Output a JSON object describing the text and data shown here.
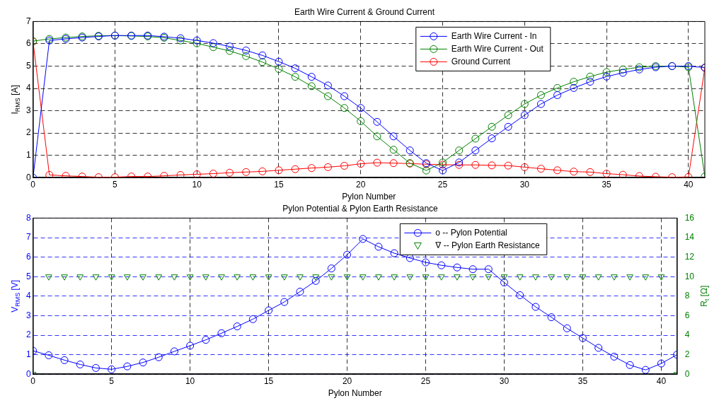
{
  "chart_data": [
    {
      "type": "line",
      "title": "Earth Wire Current & Ground Current",
      "xlabel": "Pylon Number",
      "ylabel": "I$_{RMS}$ [A]",
      "x": [
        0,
        1,
        2,
        3,
        4,
        5,
        6,
        7,
        8,
        9,
        10,
        11,
        12,
        13,
        14,
        15,
        16,
        17,
        18,
        19,
        20,
        21,
        22,
        23,
        24,
        25,
        26,
        27,
        28,
        29,
        30,
        31,
        32,
        33,
        34,
        35,
        36,
        37,
        38,
        39,
        40,
        41
      ],
      "xlim": [
        0,
        41
      ],
      "xticks": [
        0,
        5,
        10,
        15,
        20,
        25,
        30,
        35,
        40
      ],
      "ylim": [
        0,
        7
      ],
      "yticks": [
        0,
        1,
        2,
        3,
        4,
        5,
        6,
        7
      ],
      "grid": true,
      "legend": "top right",
      "marker": "circle",
      "line_style": "solid",
      "series": [
        {
          "name": "Earth Wire Current - In",
          "color": "#0000ff",
          "values": [
            0,
            6.15,
            6.22,
            6.28,
            6.33,
            6.37,
            6.37,
            6.37,
            6.32,
            6.25,
            6.15,
            6.03,
            5.88,
            5.7,
            5.48,
            5.2,
            4.9,
            4.52,
            4.13,
            3.65,
            3.12,
            2.5,
            1.85,
            1.22,
            0.65,
            0.32,
            0.68,
            1.22,
            1.76,
            2.28,
            2.8,
            3.3,
            3.7,
            4.02,
            4.3,
            4.53,
            4.7,
            4.85,
            4.95,
            5.0,
            5.0,
            4.93
          ]
        },
        {
          "name": "Earth Wire Current - Out",
          "color": "#008000",
          "values": [
            6.12,
            6.22,
            6.28,
            6.33,
            6.36,
            6.37,
            6.35,
            6.33,
            6.27,
            6.15,
            6.02,
            5.85,
            5.68,
            5.45,
            5.18,
            4.87,
            4.52,
            4.1,
            3.65,
            3.12,
            2.53,
            1.85,
            1.25,
            0.65,
            0.32,
            0.68,
            1.22,
            1.75,
            2.28,
            2.8,
            3.3,
            3.7,
            4.02,
            4.3,
            4.53,
            4.73,
            4.85,
            4.95,
            5.0,
            5.0,
            4.95,
            0.05
          ]
        },
        {
          "name": "Ground Current",
          "color": "#ff0000",
          "values": [
            6.1,
            0.12,
            0.08,
            0.05,
            0.02,
            0.02,
            0.05,
            0.05,
            0.08,
            0.12,
            0.15,
            0.18,
            0.22,
            0.25,
            0.28,
            0.33,
            0.38,
            0.43,
            0.47,
            0.53,
            0.62,
            0.67,
            0.65,
            0.63,
            0.6,
            0.58,
            0.57,
            0.57,
            0.55,
            0.54,
            0.47,
            0.4,
            0.33,
            0.27,
            0.25,
            0.18,
            0.13,
            0.07,
            0.04,
            0.02,
            0.03,
            4.93
          ]
        }
      ]
    },
    {
      "type": "line",
      "title": "Pylon Potential & Pylon Earth Resistance",
      "xlabel": "Pylon Number",
      "ylabel": "V$_{RMS}$ [V]",
      "y2label": "R$_{t}$ [Ω]",
      "x": [
        0,
        1,
        2,
        3,
        4,
        5,
        6,
        7,
        8,
        9,
        10,
        11,
        12,
        13,
        14,
        15,
        16,
        17,
        18,
        19,
        20,
        21,
        22,
        23,
        24,
        25,
        26,
        27,
        28,
        29,
        30,
        31,
        32,
        33,
        34,
        35,
        36,
        37,
        38,
        39,
        40,
        41
      ],
      "xlim": [
        0,
        41
      ],
      "xticks": [
        0,
        5,
        10,
        15,
        20,
        25,
        30,
        35,
        40
      ],
      "ylim": [
        0,
        8
      ],
      "yticks": [
        0,
        1,
        2,
        3,
        4,
        5,
        6,
        7,
        8
      ],
      "y2lim": [
        0,
        16
      ],
      "y2ticks": [
        0,
        2,
        4,
        6,
        8,
        10,
        12,
        14,
        16
      ],
      "grid": true,
      "legend": "top right",
      "line_style": "solid",
      "series": [
        {
          "name": "o -- Pylon Potential",
          "color": "#0000ff",
          "marker": "circle",
          "values": [
            1.2,
            0.97,
            0.72,
            0.5,
            0.32,
            0.25,
            0.4,
            0.6,
            0.87,
            1.17,
            1.46,
            1.76,
            2.1,
            2.45,
            2.82,
            3.27,
            3.7,
            4.23,
            4.78,
            5.42,
            6.12,
            6.93,
            6.53,
            6.2,
            5.95,
            5.73,
            5.58,
            5.47,
            5.38,
            5.38,
            4.7,
            4.05,
            3.45,
            2.92,
            2.35,
            1.85,
            1.35,
            0.9,
            0.47,
            0.22,
            0.55,
            1.0
          ]
        },
        {
          "name": "∇ -- Pylon Earth Resistance",
          "color": "#008000",
          "type": "scatter",
          "marker": "triangle",
          "axis": "y2",
          "values": [
            0,
            10,
            10,
            10,
            10,
            10,
            10,
            10,
            10,
            10,
            10,
            10,
            10,
            10,
            10,
            10,
            10,
            10,
            10,
            10,
            10,
            10,
            10,
            10,
            10,
            10,
            10,
            10,
            10,
            10,
            10,
            10,
            10,
            10,
            10,
            10,
            10,
            10,
            10,
            10,
            10,
            0
          ]
        }
      ]
    }
  ]
}
